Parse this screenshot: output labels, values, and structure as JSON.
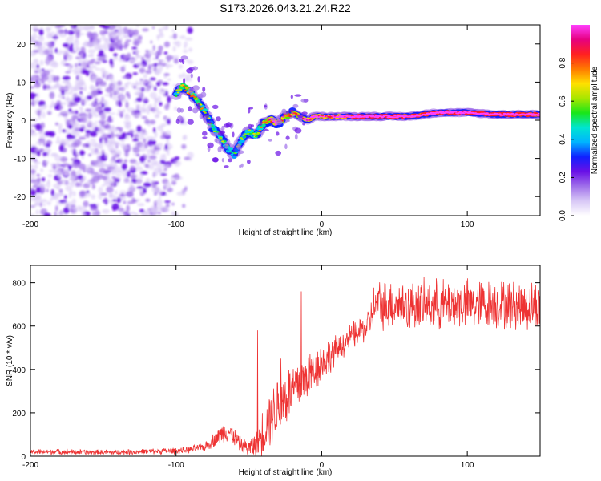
{
  "title": "S173.2026.043.21.24.R22",
  "colors": {
    "snr_line": "#ee3333",
    "cmap": [
      "#ffffff",
      "#d8c8f6",
      "#a070ea",
      "#6a10e6",
      "#1020ff",
      "#00b4ff",
      "#00e5d0",
      "#19e619",
      "#a8e600",
      "#ffe000",
      "#ff7a00",
      "#ff2020",
      "#e60080",
      "#ff40ff"
    ]
  },
  "chart_data": [
    {
      "type": "heatmap",
      "title": "",
      "xlabel": "Height of straight line (km)",
      "ylabel": "Frequency (Hz)",
      "xlim": [
        -200,
        150
      ],
      "ylim": [
        -25,
        25
      ],
      "xticks": [
        -200,
        -100,
        0,
        100
      ],
      "yticks": [
        -20,
        -10,
        0,
        10,
        20
      ],
      "colorbar": {
        "label": "Normalized spectral amplitude",
        "range": [
          0,
          1
        ],
        "ticks": [
          "0.0",
          "0.2",
          "0.4",
          "0.6",
          "0.8"
        ]
      },
      "ridge": {
        "x": [
          -100,
          -95,
          -90,
          -85,
          -80,
          -75,
          -70,
          -65,
          -60,
          -55,
          -50,
          -45,
          -40,
          -35,
          -30,
          -25,
          -20,
          -15,
          -10,
          -5,
          0,
          10,
          20,
          40,
          60,
          80,
          100,
          120,
          150
        ],
        "freq": [
          7,
          9,
          7,
          5,
          2,
          -2,
          -4,
          -7,
          -9,
          -5,
          -3,
          -4,
          -1,
          0,
          -1,
          1,
          2,
          1,
          0,
          1,
          1,
          1,
          1,
          1,
          1,
          2,
          2,
          1.5,
          1.5
        ],
        "amplitude": [
          0.35,
          0.45,
          0.5,
          0.45,
          0.4,
          0.35,
          0.4,
          0.35,
          0.3,
          0.35,
          0.35,
          0.4,
          0.5,
          0.6,
          0.65,
          0.55,
          0.55,
          0.6,
          0.65,
          0.7,
          0.6,
          0.65,
          0.75,
          0.85,
          0.75,
          0.8,
          0.85,
          0.85,
          0.75
        ]
      },
      "noise_region_x": [
        -200,
        -100
      ],
      "noise_amplitude_max": 0.15
    },
    {
      "type": "line",
      "title": "",
      "xlabel": "Height of straight line (km)",
      "ylabel": "SNR (10 * v/v)",
      "xlim": [
        -200,
        150
      ],
      "ylim": [
        0,
        880
      ],
      "xticks": [
        -200,
        -100,
        0,
        100
      ],
      "yticks": [
        0,
        200,
        400,
        600,
        800
      ],
      "series": [
        {
          "name": "SNR",
          "x": [
            -200,
            -180,
            -160,
            -140,
            -120,
            -100,
            -90,
            -80,
            -75,
            -70,
            -65,
            -60,
            -55,
            -50,
            -45,
            -40,
            -35,
            -30,
            -25,
            -20,
            -15,
            -10,
            -5,
            0,
            5,
            10,
            15,
            20,
            25,
            30,
            33,
            35,
            40,
            50,
            60,
            80,
            100,
            120,
            140,
            150
          ],
          "values": [
            20,
            20,
            18,
            18,
            22,
            25,
            30,
            45,
            70,
            95,
            120,
            90,
            50,
            35,
            55,
            120,
            180,
            230,
            270,
            300,
            340,
            370,
            400,
            430,
            460,
            490,
            520,
            550,
            570,
            590,
            620,
            680,
            700,
            700,
            690,
            700,
            700,
            700,
            690,
            690
          ],
          "noise": [
            12,
            12,
            12,
            12,
            12,
            15,
            15,
            20,
            30,
            40,
            50,
            40,
            30,
            40,
            60,
            110,
            130,
            140,
            140,
            130,
            120,
            110,
            100,
            90,
            80,
            70,
            60,
            60,
            60,
            60,
            70,
            100,
            110,
            110,
            110,
            110,
            110,
            110,
            110,
            110
          ],
          "peaks": [
            [
              -44,
              580
            ],
            [
              -14,
              760
            ],
            [
              -28,
              450
            ],
            [
              5,
              470
            ]
          ]
        }
      ]
    }
  ]
}
